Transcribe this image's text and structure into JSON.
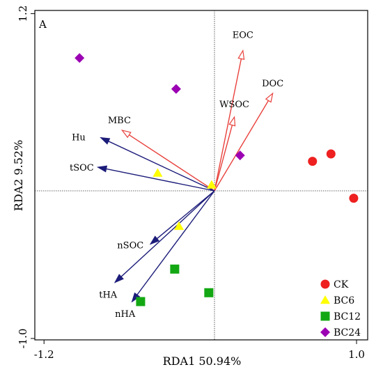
{
  "chart_data": {
    "type": "scatter",
    "panel_label": "A",
    "xlabel": "RDA1 50.94%",
    "ylabel": "RDA2 9.52%",
    "xlim": [
      -1.2,
      1.0
    ],
    "ylim": [
      -1.0,
      1.2
    ],
    "x_tick_labels": [
      {
        "value": -1.2,
        "label": "-1.2"
      },
      {
        "value": 1.0,
        "label": "1.0"
      }
    ],
    "y_tick_labels": [
      {
        "value": 1.2,
        "label": "1.2"
      },
      {
        "value": -1.0,
        "label": "-1.0"
      }
    ],
    "reference_lines": {
      "x": 0,
      "y": 0
    },
    "arrows": [
      {
        "name": "EOC",
        "x": 0.2,
        "y": 0.95,
        "color": "#e8413c",
        "style": "open"
      },
      {
        "name": "DOC",
        "x": 0.41,
        "y": 0.66,
        "color": "#e8413c",
        "style": "open"
      },
      {
        "name": "WSOC",
        "x": 0.14,
        "y": 0.5,
        "color": "#e8413c",
        "style": "open"
      },
      {
        "name": "MBC",
        "x": -0.65,
        "y": 0.41,
        "color": "#e8413c",
        "style": "open"
      },
      {
        "name": "Hu",
        "x": -0.8,
        "y": 0.36,
        "color": "#1c1c7a",
        "style": "filled"
      },
      {
        "name": "tSOC",
        "x": -0.82,
        "y": 0.16,
        "color": "#1c1c7a",
        "style": "filled"
      },
      {
        "name": "nSOC",
        "x": -0.45,
        "y": -0.36,
        "color": "#1c1c7a",
        "style": "filled"
      },
      {
        "name": "tHA",
        "x": -0.7,
        "y": -0.62,
        "color": "#1c1c7a",
        "style": "filled"
      },
      {
        "name": "nHA",
        "x": -0.58,
        "y": -0.75,
        "color": "#1c1c7a",
        "style": "filled"
      }
    ],
    "series": [
      {
        "name": "CK",
        "color": "#ee2020",
        "marker": "circle",
        "points": [
          {
            "x": 0.69,
            "y": 0.2
          },
          {
            "x": 0.82,
            "y": 0.25
          },
          {
            "x": 0.98,
            "y": -0.05
          }
        ]
      },
      {
        "name": "BC6",
        "color": "#ffff00",
        "marker": "triangle",
        "points": [
          {
            "x": -0.4,
            "y": 0.12
          },
          {
            "x": -0.25,
            "y": -0.24
          },
          {
            "x": -0.02,
            "y": 0.04
          }
        ]
      },
      {
        "name": "BC12",
        "color": "#13a813",
        "marker": "square",
        "points": [
          {
            "x": -0.28,
            "y": -0.53
          },
          {
            "x": -0.04,
            "y": -0.69
          },
          {
            "x": -0.52,
            "y": -0.75
          }
        ]
      },
      {
        "name": "BC24",
        "color": "#9b00b3",
        "marker": "diamond",
        "points": [
          {
            "x": -0.95,
            "y": 0.9
          },
          {
            "x": -0.27,
            "y": 0.69
          },
          {
            "x": 0.18,
            "y": 0.24
          }
        ]
      }
    ]
  }
}
